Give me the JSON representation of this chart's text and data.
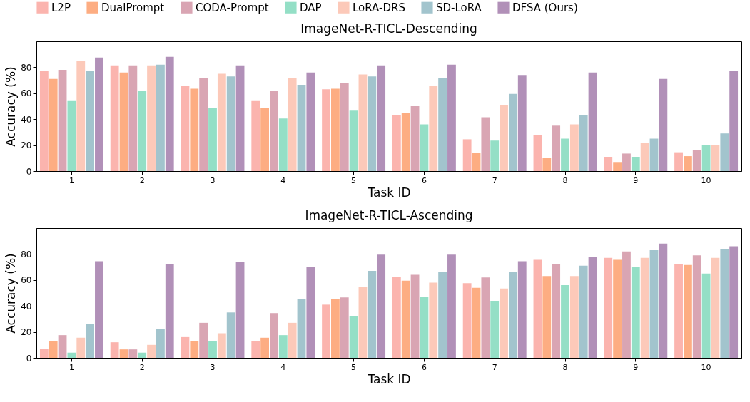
{
  "chart_data": [
    {
      "type": "bar",
      "title": "ImageNet-R-TICL-Descending",
      "xlabel": "Task ID",
      "ylabel": "Accuracy (%)",
      "categories": [
        "1",
        "2",
        "3",
        "4",
        "5",
        "6",
        "7",
        "8",
        "9",
        "10"
      ],
      "ylim": [
        0,
        100
      ],
      "yticks": [
        0,
        20,
        40,
        60,
        80
      ],
      "grid": false,
      "legend": "top",
      "series": [
        {
          "name": "L2P",
          "color": "#fbb4ae",
          "values": [
            77,
            81.5,
            65.5,
            54,
            63,
            43,
            24.5,
            28,
            11,
            14.5
          ]
        },
        {
          "name": "DualPrompt",
          "color": "#fdad82",
          "values": [
            71,
            76,
            63.5,
            48.5,
            63.5,
            45,
            14,
            10,
            7,
            11.5
          ]
        },
        {
          "name": "CODA-Prompt",
          "color": "#d9a5b3",
          "values": [
            78,
            81.5,
            71.5,
            62,
            68,
            50,
            41.5,
            35,
            13.5,
            16.5
          ]
        },
        {
          "name": "DAP",
          "color": "#94dfc6",
          "values": [
            54,
            62,
            48.5,
            40.5,
            46.5,
            36,
            23.5,
            25,
            11,
            20
          ]
        },
        {
          "name": "LoRA-DRS",
          "color": "#fcc9b9",
          "values": [
            85,
            81.5,
            75,
            72,
            74.5,
            66,
            51,
            36,
            21.5,
            20
          ]
        },
        {
          "name": "SD-LoRA",
          "color": "#a2c4cd",
          "values": [
            77,
            82,
            73,
            66.5,
            73,
            72,
            59.5,
            43,
            25,
            29
          ]
        },
        {
          "name": "DFSA (Ours)",
          "color": "#b190b8",
          "values": [
            87.5,
            88,
            81.5,
            76,
            81.5,
            82,
            74,
            76,
            71,
            77
          ]
        }
      ]
    },
    {
      "type": "bar",
      "title": "ImageNet-R-TICL-Ascending",
      "xlabel": "Task ID",
      "ylabel": "Accuracy (%)",
      "categories": [
        "1",
        "2",
        "3",
        "4",
        "5",
        "6",
        "7",
        "8",
        "9",
        "10"
      ],
      "ylim": [
        0,
        100
      ],
      "yticks": [
        0,
        20,
        40,
        60,
        80
      ],
      "grid": false,
      "series": [
        {
          "color": "#fbb4ae",
          "values": [
            7,
            12,
            16,
            13,
            41,
            62.5,
            57.5,
            75.5,
            77,
            72
          ]
        },
        {
          "color": "#fdad82",
          "values": [
            13,
            6.5,
            13,
            15.5,
            45.5,
            59.5,
            54,
            63,
            75.5,
            71.5
          ]
        },
        {
          "color": "#d9a5b3",
          "values": [
            17.5,
            6.5,
            27,
            34.5,
            46.5,
            64,
            62,
            72,
            82,
            79
          ]
        },
        {
          "color": "#94dfc6",
          "values": [
            4,
            4,
            13,
            17.5,
            32,
            47,
            44,
            56,
            70,
            65
          ]
        },
        {
          "color": "#fcc9b9",
          "values": [
            15.5,
            10,
            19,
            27,
            55,
            58,
            53.5,
            63,
            77,
            77
          ]
        },
        {
          "color": "#a2c4cd",
          "values": [
            26,
            22,
            35,
            45,
            67,
            66.5,
            66,
            71,
            83,
            83.5
          ]
        },
        {
          "color": "#b190b8",
          "values": [
            74.5,
            72.5,
            74,
            70,
            79.5,
            79.5,
            74.5,
            77.5,
            88,
            86
          ]
        }
      ]
    }
  ]
}
